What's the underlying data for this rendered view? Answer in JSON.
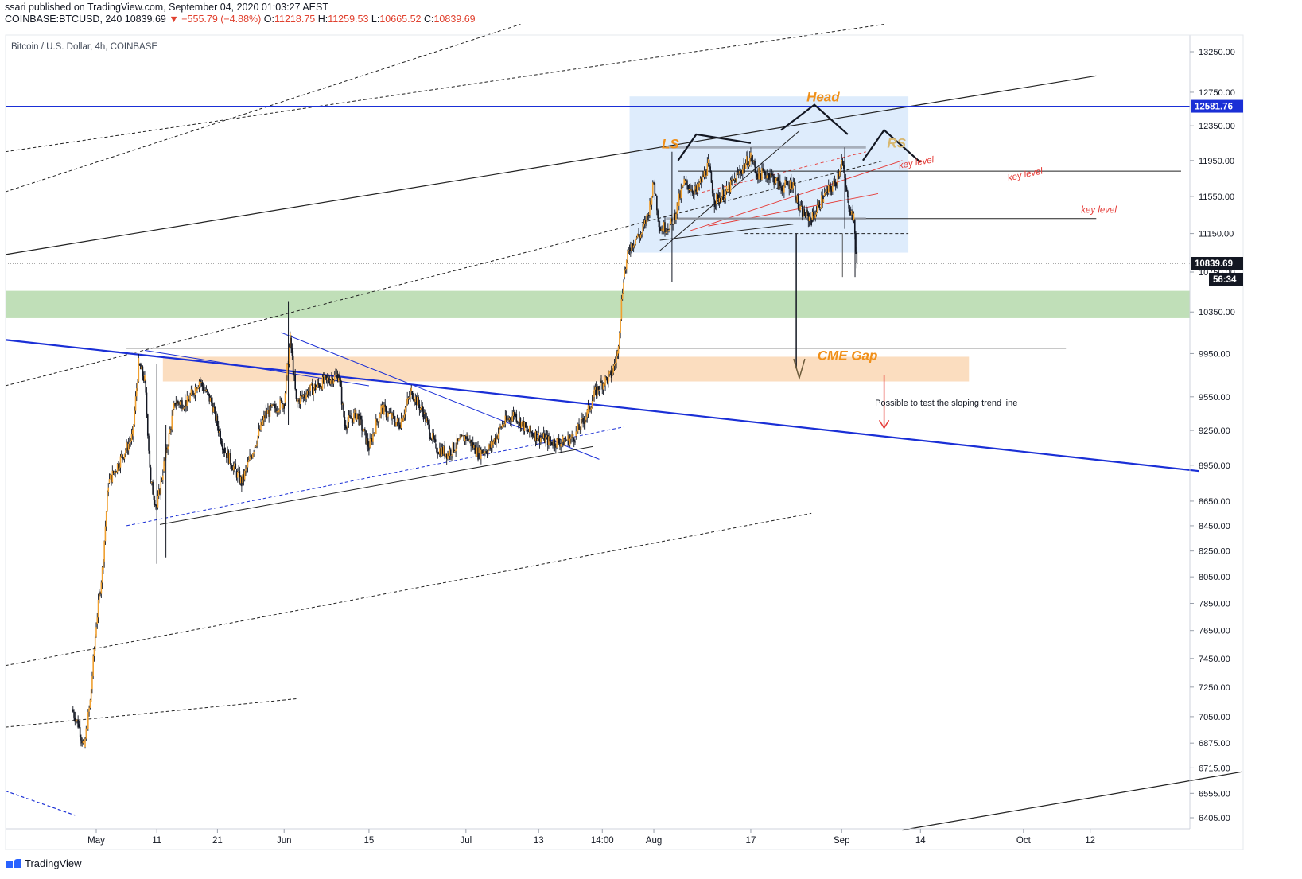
{
  "header": {
    "line1": "ssari published on TradingView.com, September 04, 2020 01:03:27 AEST",
    "symbol": "COINBASE:BTCUSD, 240",
    "last": "10839.69",
    "change": "−555.79 (−4.88%)",
    "o_label": "O:",
    "o": "11218.75",
    "h_label": "H:",
    "h": "11259.53",
    "l_label": "L:",
    "l": "10665.52",
    "c_label": "C:",
    "c": "10839.69"
  },
  "footer": {
    "brand": "TradingView"
  },
  "colors": {
    "up": "#f0a030",
    "down": "#131722",
    "trend_blue": "#1a2fd6",
    "green_zone": "#b9dcb0",
    "orange_zone": "#fbd9b8",
    "range_box": "#d6e7fb",
    "label_orange": "#f0901a",
    "red": "#e53935",
    "price_tag": "#131722",
    "line_tag": "#1a2fd6"
  },
  "chart_data": {
    "type": "candlestick",
    "title": "Bitcoin / U.S. Dollar, 4h, COINBASE",
    "y_axis": {
      "scale": "log",
      "ticks": [
        "13250.00",
        "12750.00",
        "12350.00",
        "11950.00",
        "11550.00",
        "11150.00",
        "10750.00",
        "10350.00",
        "9950.00",
        "9550.00",
        "9250.00",
        "8950.00",
        "8650.00",
        "8450.00",
        "8250.00",
        "8050.00",
        "7850.00",
        "7650.00",
        "7450.00",
        "7250.00",
        "7050.00",
        "6875.00",
        "6715.00",
        "6555.00",
        "6405.00"
      ],
      "range": [
        6300,
        13600
      ]
    },
    "x_axis": {
      "ticks": [
        "May",
        "11",
        "21",
        "Jun",
        "15",
        "Jul",
        "13",
        "14:00",
        "Aug",
        "17",
        "Sep",
        "14",
        "Oct",
        "12"
      ]
    },
    "price_tags": {
      "last": "10839.69",
      "countdown": "56:34",
      "horizontal_line": "12581.76"
    },
    "annotations": [
      "Head",
      "LS",
      "RS",
      "key level",
      "key level",
      "key level",
      "CME Gap",
      "Possible to test the sloping trend line"
    ],
    "zones": [
      {
        "name": "green-support-zone",
        "low": 10290,
        "high": 10560
      },
      {
        "name": "cme-gap",
        "low": 9690,
        "high": 9920
      }
    ],
    "price_path": [
      [
        "Apr 27",
        7100
      ],
      [
        "Apr 28",
        7000
      ],
      [
        "Apr 29",
        6850
      ],
      [
        "Apr 30",
        7150
      ],
      [
        "May 1",
        7700
      ],
      [
        "May 2",
        8100
      ],
      [
        "May 3",
        8800
      ],
      [
        "May 4",
        8900
      ],
      [
        "May 6",
        9100
      ],
      [
        "May 7",
        9200
      ],
      [
        "May 8",
        9850
      ],
      [
        "May 9",
        9700
      ],
      [
        "May 10",
        8800
      ],
      [
        "May 11",
        8600
      ],
      [
        "May 12",
        8900
      ],
      [
        "May 14",
        9500
      ],
      [
        "May 16",
        9500
      ],
      [
        "May 18",
        9700
      ],
      [
        "May 20",
        9500
      ],
      [
        "May 22",
        9100
      ],
      [
        "May 24",
        8900
      ],
      [
        "May 25",
        8800
      ],
      [
        "May 27",
        9100
      ],
      [
        "May 29",
        9400
      ],
      [
        "Jun 1",
        9500
      ],
      [
        "Jun 2",
        10100
      ],
      [
        "Jun 3",
        9500
      ],
      [
        "Jun 5",
        9600
      ],
      [
        "Jun 8",
        9700
      ],
      [
        "Jun 10",
        9750
      ],
      [
        "Jun 11",
        9300
      ],
      [
        "Jun 13",
        9400
      ],
      [
        "Jun 15",
        9100
      ],
      [
        "Jun 17",
        9450
      ],
      [
        "Jun 20",
        9300
      ],
      [
        "Jun 22",
        9600
      ],
      [
        "Jun 24",
        9400
      ],
      [
        "Jun 26",
        9100
      ],
      [
        "Jun 28",
        9050
      ],
      [
        "Jul 1",
        9200
      ],
      [
        "Jul 3",
        9050
      ],
      [
        "Jul 5",
        9100
      ],
      [
        "Jul 7",
        9300
      ],
      [
        "Jul 9",
        9400
      ],
      [
        "Jul 11",
        9250
      ],
      [
        "Jul 13",
        9200
      ],
      [
        "Jul 15",
        9150
      ],
      [
        "Jul 17",
        9150
      ],
      [
        "Jul 19",
        9200
      ],
      [
        "Jul 21",
        9400
      ],
      [
        "Jul 22",
        9550
      ],
      [
        "Jul 23",
        9650
      ],
      [
        "Jul 25",
        9750
      ],
      [
        "Jul 26",
        9950
      ],
      [
        "Jul 27",
        10700
      ],
      [
        "Jul 28",
        11000
      ],
      [
        "Jul 29",
        11100
      ],
      [
        "Jul 30",
        11150
      ],
      [
        "Jul 31",
        11350
      ],
      [
        "Aug 1",
        11700
      ],
      [
        "Aug 2",
        11200
      ],
      [
        "Aug 4",
        11250
      ],
      [
        "Aug 6",
        11700
      ],
      [
        "Aug 8",
        11600
      ],
      [
        "Aug 10",
        11900
      ],
      [
        "Aug 11",
        11500
      ],
      [
        "Aug 13",
        11600
      ],
      [
        "Aug 15",
        11800
      ],
      [
        "Aug 17",
        12000
      ],
      [
        "Aug 18",
        11800
      ],
      [
        "Aug 20",
        11800
      ],
      [
        "Aug 22",
        11650
      ],
      [
        "Aug 24",
        11700
      ],
      [
        "Aug 25",
        11400
      ],
      [
        "Aug 27",
        11300
      ],
      [
        "Aug 29",
        11550
      ],
      [
        "Aug 31",
        11700
      ],
      [
        "Sep 1",
        11950
      ],
      [
        "Sep 2",
        11500
      ],
      [
        "Sep 3",
        11300
      ],
      [
        "Sep 3 pm",
        10839.69
      ]
    ]
  }
}
